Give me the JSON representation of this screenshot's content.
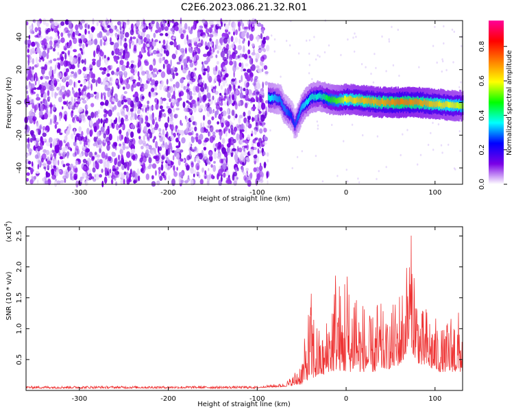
{
  "title": "C2E6.2023.086.21.32.R01",
  "chart_data": [
    {
      "type": "heatmap",
      "xlabel": "Height of straight line (km)",
      "ylabel": "Frequency (Hz)",
      "xlim": [
        -360,
        131
      ],
      "ylim": [
        -50,
        50
      ],
      "xticks": [
        -300,
        -200,
        -100,
        0,
        100
      ],
      "yticks": [
        -40,
        -20,
        0,
        20,
        40
      ],
      "colorbar": {
        "label": "Normalized spectral amplitude",
        "range": [
          0,
          0.95
        ],
        "ticks": [
          0.0,
          0.2,
          0.4,
          0.6,
          0.8
        ],
        "colormap": [
          "#ffffff",
          "#7a00e6",
          "#0000ff",
          "#00ffff",
          "#00ff00",
          "#ffff00",
          "#ff8000",
          "#ff0000",
          "#ff0099"
        ]
      },
      "noise_region_x": [
        -360,
        -88
      ],
      "signal_trace": [
        {
          "x": -88,
          "f": 3,
          "amp": 0.45
        },
        {
          "x": -75,
          "f": 2,
          "amp": 0.35
        },
        {
          "x": -70,
          "f": -4,
          "amp": 0.35
        },
        {
          "x": -62,
          "f": -8,
          "amp": 0.3
        },
        {
          "x": -58,
          "f": -14,
          "amp": 0.3
        },
        {
          "x": -50,
          "f": -3,
          "amp": 0.4
        },
        {
          "x": -40,
          "f": 3,
          "amp": 0.45
        },
        {
          "x": -30,
          "f": 4,
          "amp": 0.45
        },
        {
          "x": -20,
          "f": 2,
          "amp": 0.55
        },
        {
          "x": -10,
          "f": 1,
          "amp": 0.6
        },
        {
          "x": 0,
          "f": 2,
          "amp": 0.72
        },
        {
          "x": 20,
          "f": 1,
          "amp": 0.78
        },
        {
          "x": 40,
          "f": 0,
          "amp": 0.8
        },
        {
          "x": 60,
          "f": 0,
          "amp": 0.85
        },
        {
          "x": 80,
          "f": 0,
          "amp": 0.82
        },
        {
          "x": 100,
          "f": -1,
          "amp": 0.75
        },
        {
          "x": 120,
          "f": -2,
          "amp": 0.7
        },
        {
          "x": 131,
          "f": -2,
          "amp": 0.65
        }
      ]
    },
    {
      "type": "line",
      "xlabel": "Height of straight line (km)",
      "ylabel": "SNR (10 * v/v)",
      "y_scale_label": "(x10",
      "y_scale_exp": "4",
      "y_scale_tail": ")",
      "xlim": [
        -360,
        131
      ],
      "ylim": [
        0,
        2.65
      ],
      "xticks": [
        -300,
        -200,
        -100,
        0,
        100
      ],
      "yticks": [
        0.5,
        1.0,
        1.5,
        2.0,
        2.5
      ],
      "ytick_labels": [
        "0.5",
        "1.0",
        "1.5",
        "2.0",
        "2.5"
      ],
      "series": [
        {
          "color": "#ee3333",
          "envelope_x": [
            -360,
            -100,
            -90,
            -70,
            -60,
            -50,
            -45,
            -40,
            -35,
            -30,
            -25,
            -20,
            -15,
            -10,
            -5,
            0,
            5,
            10,
            15,
            20,
            25,
            30,
            35,
            40,
            45,
            50,
            55,
            60,
            65,
            70,
            72,
            75,
            80,
            85,
            90,
            95,
            100,
            105,
            110,
            115,
            120,
            125,
            131
          ],
          "envelope_y": [
            0.06,
            0.06,
            0.09,
            0.12,
            0.25,
            0.55,
            1.0,
            1.7,
            1.3,
            1.0,
            0.9,
            1.4,
            1.9,
            2.3,
            1.4,
            2.55,
            1.3,
            2.45,
            1.4,
            1.5,
            1.2,
            1.25,
            1.5,
            1.4,
            1.1,
            1.3,
            1.5,
            1.7,
            1.8,
            2.4,
            2.6,
            2.5,
            1.8,
            1.3,
            1.4,
            1.3,
            1.2,
            1.1,
            1.0,
            1.2,
            1.4,
            1.3,
            1.3
          ],
          "floor_y": [
            0.04,
            0.04,
            0.05,
            0.06,
            0.08,
            0.1,
            0.15,
            0.2,
            0.2,
            0.25,
            0.25,
            0.3,
            0.3,
            0.35,
            0.3,
            0.3,
            0.3,
            0.35,
            0.3,
            0.3,
            0.3,
            0.3,
            0.3,
            0.35,
            0.35,
            0.35,
            0.4,
            0.4,
            0.5,
            0.7,
            0.8,
            0.6,
            0.45,
            0.4,
            0.4,
            0.35,
            0.35,
            0.3,
            0.3,
            0.3,
            0.3,
            0.3,
            0.3
          ]
        }
      ]
    }
  ]
}
